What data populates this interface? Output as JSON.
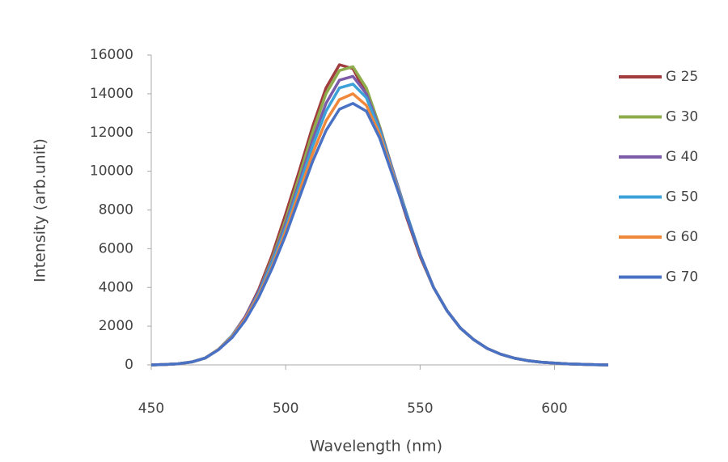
{
  "chart_data": {
    "type": "line",
    "x_label": "Wavelength (nm)",
    "y_label": "Intensity (arb.unit)",
    "x": [
      450,
      455,
      460,
      465,
      470,
      475,
      480,
      485,
      490,
      495,
      500,
      505,
      510,
      515,
      520,
      525,
      530,
      535,
      540,
      545,
      550,
      555,
      560,
      565,
      570,
      575,
      580,
      585,
      590,
      595,
      600,
      605,
      610,
      615,
      620
    ],
    "series": [
      {
        "name": "G 25",
        "color": "#a03c3e",
        "values": [
          0,
          20,
          60,
          150,
          350,
          800,
          1500,
          2500,
          3900,
          5700,
          7800,
          10000,
          12300,
          14300,
          15500,
          15300,
          14000,
          12000,
          9800,
          7600,
          5600,
          4000,
          2800,
          1900,
          1300,
          850,
          550,
          350,
          220,
          140,
          90,
          50,
          30,
          10,
          0
        ]
      },
      {
        "name": "G 30",
        "color": "#8fac4c",
        "values": [
          0,
          20,
          60,
          150,
          350,
          800,
          1500,
          2500,
          3800,
          5500,
          7500,
          9700,
          12000,
          14000,
          15200,
          15400,
          14300,
          12300,
          10000,
          7800,
          5700,
          4000,
          2800,
          1900,
          1300,
          850,
          550,
          350,
          220,
          140,
          90,
          50,
          30,
          10,
          0
        ]
      },
      {
        "name": "G 40",
        "color": "#7c5ba8",
        "values": [
          0,
          20,
          60,
          150,
          350,
          800,
          1500,
          2500,
          3800,
          5400,
          7300,
          9400,
          11600,
          13500,
          14700,
          14900,
          14000,
          12200,
          10000,
          7800,
          5700,
          4000,
          2800,
          1900,
          1300,
          850,
          550,
          350,
          220,
          140,
          90,
          50,
          30,
          10,
          0
        ]
      },
      {
        "name": "G 50",
        "color": "#3ba1d8",
        "values": [
          0,
          20,
          60,
          150,
          350,
          800,
          1500,
          2400,
          3700,
          5300,
          7100,
          9200,
          11300,
          13100,
          14300,
          14500,
          13800,
          12100,
          9900,
          7800,
          5700,
          4000,
          2800,
          1900,
          1300,
          850,
          550,
          350,
          220,
          140,
          90,
          50,
          30,
          10,
          0
        ]
      },
      {
        "name": "G 60",
        "color": "#f0883c",
        "values": [
          0,
          20,
          60,
          150,
          350,
          800,
          1450,
          2400,
          3600,
          5100,
          6900,
          8900,
          10900,
          12600,
          13700,
          14000,
          13400,
          11900,
          9800,
          7700,
          5700,
          4000,
          2800,
          1900,
          1300,
          850,
          550,
          350,
          220,
          140,
          90,
          50,
          30,
          10,
          0
        ]
      },
      {
        "name": "G 70",
        "color": "#4a72c4",
        "values": [
          0,
          20,
          60,
          150,
          350,
          780,
          1400,
          2300,
          3500,
          5000,
          6700,
          8600,
          10500,
          12100,
          13200,
          13500,
          13100,
          11700,
          9700,
          7700,
          5700,
          4000,
          2800,
          1900,
          1300,
          850,
          550,
          350,
          220,
          140,
          90,
          50,
          30,
          10,
          0
        ]
      }
    ],
    "xlim": [
      450,
      620
    ],
    "xticks": [
      450,
      500,
      550,
      600
    ],
    "ylim": [
      0,
      16000
    ],
    "yticks": [
      0,
      2000,
      4000,
      6000,
      8000,
      10000,
      12000,
      14000,
      16000
    ],
    "grid": false,
    "legend": "right"
  }
}
